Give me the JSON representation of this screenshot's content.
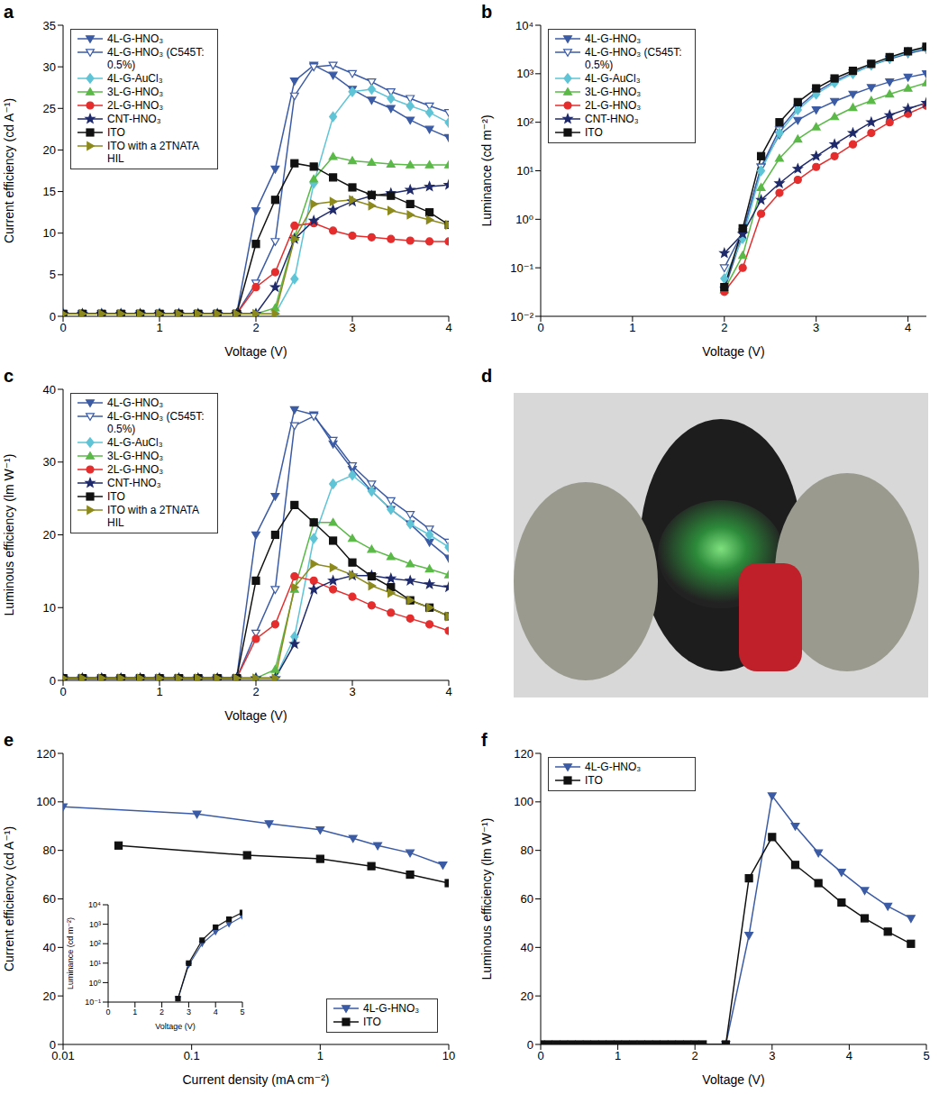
{
  "chart_data": [
    {
      "panel": "a",
      "type": "line",
      "xlabel": "Voltage (V)",
      "ylabel": "Current efficiency (cd A⁻¹)",
      "xlim": [
        0,
        4
      ],
      "xticks": [
        0,
        1,
        2,
        3,
        4
      ],
      "ylim": [
        0,
        35
      ],
      "yticks": [
        0,
        5,
        10,
        15,
        20,
        25,
        30,
        35
      ],
      "legend": "upper left",
      "x": [
        0,
        0.2,
        0.4,
        0.6,
        0.8,
        1,
        1.2,
        1.4,
        1.6,
        1.8,
        2,
        2.2,
        2.4,
        2.6,
        2.8,
        3,
        3.2,
        3.4,
        3.6,
        3.8,
        4
      ],
      "series": [
        {
          "name": "4L-G-HNO₃",
          "color": "#3b5ba5",
          "marker": "triangle_down",
          "values": [
            0.3,
            0.3,
            0.3,
            0.3,
            0.3,
            0.3,
            0.3,
            0.3,
            0.3,
            0.3,
            12.7,
            17.7,
            28.3,
            30.2,
            29,
            27.3,
            26,
            25,
            23.6,
            22.5,
            21.5
          ]
        },
        {
          "name": "4L-G-HNO₃ (C545T: 0.5%)",
          "color": "#3b5ba5",
          "marker": "triangle_down_open",
          "values": [
            0.3,
            0.3,
            0.3,
            0.3,
            0.3,
            0.3,
            0.3,
            0.3,
            0.3,
            0.3,
            4,
            9,
            26.5,
            30,
            30.2,
            29.2,
            28.2,
            27,
            26.2,
            25.3,
            24.5
          ]
        },
        {
          "name": "4L-G-AuCl₃",
          "color": "#5ec4d6",
          "marker": "diamond",
          "values": [
            0.3,
            0.3,
            0.3,
            0.3,
            0.3,
            0.3,
            0.3,
            0.3,
            0.3,
            0.3,
            0.3,
            0.3,
            4.5,
            16,
            24,
            27,
            27.3,
            26.2,
            25.3,
            24.5,
            23.3
          ]
        },
        {
          "name": "3L-G-HNO₃",
          "color": "#5ab947",
          "marker": "triangle_up",
          "values": [
            0.3,
            0.3,
            0.3,
            0.3,
            0.3,
            0.3,
            0.3,
            0.3,
            0.3,
            0.3,
            0.3,
            1,
            9.5,
            16.5,
            19.2,
            18.7,
            18.5,
            18.3,
            18.2,
            18.2,
            18.2
          ]
        },
        {
          "name": "2L-G-HNO₃",
          "color": "#e52d2d",
          "marker": "circle",
          "values": [
            0.3,
            0.3,
            0.3,
            0.3,
            0.3,
            0.3,
            0.3,
            0.3,
            0.3,
            0.3,
            3.5,
            5.3,
            10.9,
            11.2,
            10.3,
            9.7,
            9.5,
            9.3,
            9.1,
            9,
            9
          ]
        },
        {
          "name": "CNT-HNO₃",
          "color": "#1f2a6b",
          "marker": "star",
          "values": [
            0.3,
            0.3,
            0.3,
            0.3,
            0.3,
            0.3,
            0.3,
            0.3,
            0.3,
            0.3,
            0.3,
            3.5,
            9.3,
            11.5,
            12.8,
            13.8,
            14.5,
            14.8,
            15.2,
            15.6,
            15.8
          ]
        },
        {
          "name": "ITO",
          "color": "#111111",
          "marker": "square",
          "values": [
            0.3,
            0.3,
            0.3,
            0.3,
            0.3,
            0.3,
            0.3,
            0.3,
            0.3,
            0.3,
            8.7,
            14,
            18.4,
            18,
            16.7,
            15.5,
            14.6,
            14.5,
            13.5,
            12.5,
            11
          ]
        },
        {
          "name": "ITO with a 2TNATA HIL",
          "color": "#8c8a1c",
          "marker": "triangle_right",
          "values": [
            0.3,
            0.3,
            0.3,
            0.3,
            0.3,
            0.3,
            0.3,
            0.3,
            0.3,
            0.3,
            0.3,
            0.3,
            9.3,
            13.5,
            13.8,
            14,
            13.3,
            12.7,
            12.2,
            11.6,
            11
          ]
        }
      ]
    },
    {
      "panel": "b",
      "type": "line",
      "xlabel": "Voltage (V)",
      "ylabel": "Luminance (cd m⁻²)",
      "log": "y",
      "xlim": [
        0,
        4.2
      ],
      "xticks": [
        0,
        1,
        2,
        3,
        4
      ],
      "ylim": [
        0.01,
        10000
      ],
      "yticks": [
        {
          "value": 0.01,
          "label": "10⁻²"
        },
        {
          "value": 0.1,
          "label": "10⁻¹"
        },
        {
          "value": 1,
          "label": "10⁰"
        },
        {
          "value": 10,
          "label": "10¹"
        },
        {
          "value": 100,
          "label": "10²"
        },
        {
          "value": 1000,
          "label": "10³"
        },
        {
          "value": 10000,
          "label": "10⁴"
        }
      ],
      "legend": "upper left",
      "x": [
        2,
        2.2,
        2.4,
        2.6,
        2.8,
        3,
        3.2,
        3.4,
        3.6,
        3.8,
        4,
        4.2
      ],
      "series": [
        {
          "name": "4L-G-HNO₃",
          "color": "#3b5ba5",
          "marker": "triangle_down",
          "values": [
            0.035,
            0.5,
            12,
            55,
            110,
            180,
            270,
            380,
            520,
            680,
            850,
            1000
          ]
        },
        {
          "name": "4L-G-HNO₃ (C545T: 0.5%)",
          "color": "#3b5ba5",
          "marker": "triangle_down_open",
          "values": [
            0.1,
            0.55,
            12,
            70,
            200,
            420,
            700,
            1050,
            1500,
            2000,
            2600,
            3200
          ]
        },
        {
          "name": "4L-G-AuCl₃",
          "color": "#5ec4d6",
          "marker": "diamond",
          "values": [
            0.06,
            0.4,
            10,
            60,
            180,
            380,
            650,
            1000,
            1500,
            2100,
            2800,
            3400
          ]
        },
        {
          "name": "3L-G-HNO₃",
          "color": "#5ab947",
          "marker": "triangle_up",
          "values": [
            0.035,
            0.18,
            4.5,
            18,
            45,
            80,
            130,
            200,
            280,
            380,
            500,
            650
          ]
        },
        {
          "name": "2L-G-HNO₃",
          "color": "#e52d2d",
          "marker": "circle",
          "values": [
            0.032,
            0.1,
            1.3,
            3.5,
            6.5,
            12,
            20,
            35,
            60,
            100,
            150,
            220
          ]
        },
        {
          "name": "CNT-HNO₃",
          "color": "#1f2a6b",
          "marker": "star",
          "values": [
            0.2,
            0.5,
            2.5,
            5.5,
            11,
            20,
            35,
            60,
            100,
            140,
            190,
            250
          ]
        },
        {
          "name": "ITO",
          "color": "#111111",
          "marker": "square",
          "values": [
            0.04,
            0.65,
            20,
            100,
            260,
            500,
            800,
            1150,
            1600,
            2200,
            2900,
            3600
          ]
        }
      ]
    },
    {
      "panel": "c",
      "type": "line",
      "xlabel": "Voltage (V)",
      "ylabel": "Luminous efficiency (lm W⁻¹)",
      "xlim": [
        0,
        4
      ],
      "xticks": [
        0,
        1,
        2,
        3,
        4
      ],
      "ylim": [
        0,
        40
      ],
      "yticks": [
        0,
        10,
        20,
        30,
        40
      ],
      "legend": "upper left",
      "x": [
        0,
        0.2,
        0.4,
        0.6,
        0.8,
        1,
        1.2,
        1.4,
        1.6,
        1.8,
        2,
        2.2,
        2.4,
        2.6,
        2.8,
        3,
        3.2,
        3.4,
        3.6,
        3.8,
        4
      ],
      "series": [
        {
          "name": "4L-G-HNO₃",
          "color": "#3b5ba5",
          "marker": "triangle_down",
          "values": [
            0.3,
            0.3,
            0.3,
            0.3,
            0.3,
            0.3,
            0.3,
            0.3,
            0.3,
            0.3,
            20,
            25.3,
            37.2,
            36.5,
            32.5,
            29,
            26,
            23.5,
            21.5,
            19,
            16.8
          ]
        },
        {
          "name": "4L-G-HNO₃ (C545T: 0.5%)",
          "color": "#3b5ba5",
          "marker": "triangle_down_open",
          "values": [
            0.3,
            0.3,
            0.3,
            0.3,
            0.3,
            0.3,
            0.3,
            0.3,
            0.3,
            0.3,
            6.5,
            12.5,
            35,
            36.3,
            33,
            29.5,
            27,
            24.7,
            22.8,
            20.8,
            19
          ]
        },
        {
          "name": "4L-G-AuCl₃",
          "color": "#5ec4d6",
          "marker": "diamond",
          "values": [
            0.3,
            0.3,
            0.3,
            0.3,
            0.3,
            0.3,
            0.3,
            0.3,
            0.3,
            0.3,
            0.3,
            0.3,
            6,
            19.5,
            27,
            28.2,
            26,
            23.5,
            21.5,
            20,
            18.3
          ]
        },
        {
          "name": "3L-G-HNO₃",
          "color": "#5ab947",
          "marker": "triangle_up",
          "values": [
            0.3,
            0.3,
            0.3,
            0.3,
            0.3,
            0.3,
            0.3,
            0.3,
            0.3,
            0.3,
            0.3,
            1.5,
            12.5,
            21.7,
            21.7,
            19.5,
            18,
            17,
            16,
            15.3,
            14.5
          ]
        },
        {
          "name": "2L-G-HNO₃",
          "color": "#e52d2d",
          "marker": "circle",
          "values": [
            0.3,
            0.3,
            0.3,
            0.3,
            0.3,
            0.3,
            0.3,
            0.3,
            0.3,
            0.3,
            5.7,
            7.7,
            14.3,
            13.7,
            12.5,
            11.5,
            10.3,
            9.3,
            8.5,
            7.7,
            6.8
          ]
        },
        {
          "name": "CNT-HNO₃",
          "color": "#1f2a6b",
          "marker": "star",
          "values": [
            0.3,
            0.3,
            0.3,
            0.3,
            0.3,
            0.3,
            0.3,
            0.3,
            0.3,
            0.3,
            0.3,
            0.3,
            5,
            12.5,
            13.7,
            14.4,
            14.4,
            14,
            13.7,
            13.2,
            12.8
          ]
        },
        {
          "name": "ITO",
          "color": "#111111",
          "marker": "square",
          "values": [
            0.3,
            0.3,
            0.3,
            0.3,
            0.3,
            0.3,
            0.3,
            0.3,
            0.3,
            0.3,
            13.7,
            20,
            24.1,
            21.7,
            19.2,
            16.2,
            14.3,
            12.8,
            11,
            10,
            8.8
          ]
        },
        {
          "name": "ITO with a 2TNATA HIL",
          "color": "#8c8a1c",
          "marker": "triangle_right",
          "values": [
            0.3,
            0.3,
            0.3,
            0.3,
            0.3,
            0.3,
            0.3,
            0.3,
            0.3,
            0.3,
            0.3,
            0.3,
            12.8,
            16,
            15.5,
            14.5,
            13,
            12,
            11,
            10,
            8.8
          ]
        }
      ]
    },
    {
      "panel": "d",
      "type": "image"
    },
    {
      "panel": "e",
      "type": "line",
      "xlabel": "Current density (mA cm⁻²)",
      "ylabel": "Current efficiency (cd A⁻¹)",
      "log": "x",
      "xlim": [
        0.01,
        10
      ],
      "xticks": [
        0.01,
        0.1,
        1,
        10
      ],
      "ylim": [
        0,
        120
      ],
      "yticks": [
        0,
        20,
        40,
        60,
        80,
        100,
        120
      ],
      "legend": "lower right",
      "series": [
        {
          "name": "4L-G-HNO₃",
          "color": "#3b5ba5",
          "marker": "triangle_down",
          "x": [
            0.01,
            0.11,
            0.4,
            1,
            1.8,
            2.8,
            5,
            9
          ],
          "values": [
            98,
            95,
            91,
            88.5,
            85,
            82,
            79,
            74
          ]
        },
        {
          "name": "ITO",
          "color": "#111111",
          "marker": "square",
          "x": [
            0.027,
            0.27,
            1,
            2.5,
            5,
            10
          ],
          "values": [
            82,
            78,
            76.5,
            73.5,
            70,
            66.5
          ]
        }
      ],
      "inset": {
        "type": "line",
        "xlabel": "Voltage (V)",
        "ylabel": "Luminance (cd m⁻²)",
        "log": "y",
        "xlim": [
          0,
          5
        ],
        "xticks": [
          0,
          1,
          2,
          3,
          4,
          5
        ],
        "ylim": [
          0.1,
          10000
        ],
        "yticks": [
          {
            "value": 0.1,
            "label": "10⁻¹"
          },
          {
            "value": 1,
            "label": "10⁰"
          },
          {
            "value": 10,
            "label": "10¹"
          },
          {
            "value": 100,
            "label": "10²"
          },
          {
            "value": 1000,
            "label": "10³"
          },
          {
            "value": 10000,
            "label": "10⁴"
          }
        ],
        "x": [
          2.6,
          3,
          3.5,
          4,
          4.5,
          5
        ],
        "series": [
          {
            "name": "4L-G-HNO₃",
            "color": "#3b5ba5",
            "marker": "triangle_down",
            "values": [
              0.15,
              8,
              100,
              400,
              1000,
              2500
            ]
          },
          {
            "name": "ITO",
            "color": "#111111",
            "marker": "square",
            "values": [
              0.15,
              10,
              150,
              700,
              1800,
              4000
            ]
          }
        ]
      }
    },
    {
      "panel": "f",
      "type": "line",
      "xlabel": "Voltage (V)",
      "ylabel": "Luminous efficiency (lm W⁻¹)",
      "xlim": [
        0,
        5
      ],
      "xticks": [
        0,
        1,
        2,
        3,
        4,
        5
      ],
      "ylim": [
        0,
        120
      ],
      "yticks": [
        0,
        20,
        40,
        60,
        80,
        100,
        120
      ],
      "legend": "upper left",
      "x": [
        0,
        0.1,
        0.2,
        0.3,
        0.4,
        0.5,
        0.6,
        0.7,
        0.8,
        0.9,
        1,
        1.1,
        1.2,
        1.3,
        1.4,
        1.5,
        1.6,
        1.7,
        1.8,
        1.9,
        2,
        2.1,
        2.4,
        2.7,
        3,
        3.3,
        3.6,
        3.9,
        4.2,
        4.5,
        4.8
      ],
      "series": [
        {
          "name": "4L-G-HNO₃",
          "color": "#3b5ba5",
          "marker": "triangle_down",
          "values": [
            null,
            null,
            null,
            null,
            null,
            null,
            null,
            null,
            null,
            null,
            null,
            null,
            null,
            null,
            null,
            null,
            null,
            null,
            null,
            null,
            null,
            null,
            0,
            45,
            102.5,
            90,
            79,
            71,
            63.5,
            57,
            52
          ]
        },
        {
          "name": "ITO",
          "color": "#111111",
          "marker": "square",
          "values": [
            0,
            0,
            0,
            0,
            0,
            0,
            0,
            0,
            0,
            0,
            0,
            0,
            0,
            0,
            0,
            0,
            0,
            0,
            0,
            0,
            0,
            0,
            0,
            68.5,
            85.5,
            74,
            66.5,
            58.5,
            52,
            46.5,
            41.5
          ]
        }
      ]
    }
  ]
}
